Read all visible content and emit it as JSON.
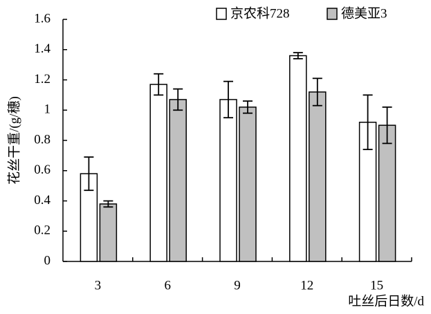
{
  "chart_data": {
    "type": "bar",
    "y_label": "花丝干重/(g/穗)",
    "x_label": "吐丝后日数/d",
    "categories": [
      "3",
      "6",
      "9",
      "12",
      "15"
    ],
    "series": [
      {
        "name": "京农科728",
        "color": "#ffffff",
        "values": [
          0.58,
          1.17,
          1.07,
          1.36,
          0.92
        ],
        "errors": [
          0.11,
          0.07,
          0.12,
          0.02,
          0.18
        ]
      },
      {
        "name": "德美亚3",
        "color": "#c0c0c0",
        "values": [
          0.38,
          1.07,
          1.02,
          1.12,
          0.9
        ],
        "errors": [
          0.02,
          0.07,
          0.04,
          0.09,
          0.12
        ]
      }
    ],
    "ylim": [
      0,
      1.6
    ],
    "yticks": [
      0,
      0.2,
      0.4,
      0.6,
      0.8,
      1,
      1.2,
      1.4,
      1.6
    ],
    "grid": false,
    "legend": "top-right"
  }
}
